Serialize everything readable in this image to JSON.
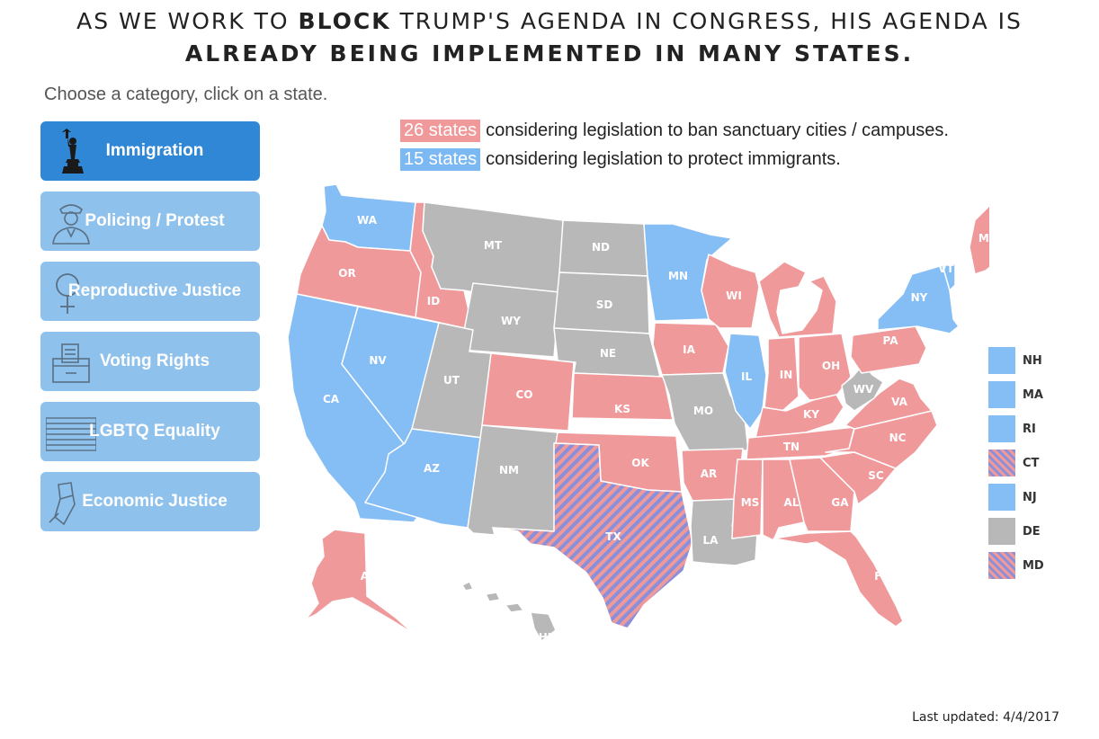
{
  "headline": {
    "line1_pre": "AS WE WORK TO ",
    "line1_bold": "BLOCK",
    "line1_post": " TRUMP'S AGENDA IN CONGRESS, HIS AGENDA IS",
    "line2": "ALREADY BEING IMPLEMENTED IN MANY STATES."
  },
  "instruction": "Choose a category, click on a state.",
  "categories": [
    {
      "label": "Immigration",
      "icon": "statue-of-liberty-icon",
      "active": true
    },
    {
      "label": "Policing / Protest",
      "icon": "police-officer-icon",
      "active": false
    },
    {
      "label": "Reproductive Justice",
      "icon": "female-symbol-icon",
      "active": false
    },
    {
      "label": "Voting Rights",
      "icon": "ballot-box-icon",
      "active": false
    },
    {
      "label": "LGBTQ Equality",
      "icon": "flag-icon",
      "active": false
    },
    {
      "label": "Economic Justice",
      "icon": "raised-fist-icon",
      "active": false
    }
  ],
  "legend": {
    "ban": {
      "count": "26 states",
      "text": "considering legislation to ban sanctuary cities / campuses.",
      "color": "#f0999b"
    },
    "protect": {
      "count": "15 states",
      "text": "considering legislation to protect immigrants.",
      "color": "#7cb9f2"
    }
  },
  "colors": {
    "red": "#f0999b",
    "blue": "#85bdf5",
    "gray": "#b8b8b8",
    "stripe_a": "#f0999b",
    "stripe_b": "#8a8fd9"
  },
  "states": {
    "WA": "blue",
    "OR": "red",
    "CA": "blue",
    "NV": "blue",
    "ID": "red",
    "MT": "gray",
    "WY": "gray",
    "UT": "gray",
    "AZ": "blue",
    "NM": "gray",
    "CO": "red",
    "ND": "gray",
    "SD": "gray",
    "NE": "gray",
    "KS": "red",
    "OK": "red",
    "TX": "stripe",
    "MN": "blue",
    "IA": "red",
    "MO": "gray",
    "AR": "red",
    "LA": "gray",
    "WI": "red",
    "IL": "blue",
    "MI": "red",
    "IN": "red",
    "OH": "red",
    "KY": "red",
    "TN": "red",
    "MS": "red",
    "AL": "red",
    "GA": "red",
    "FL": "red",
    "SC": "red",
    "NC": "red",
    "VA": "red",
    "WV": "gray",
    "PA": "red",
    "NY": "blue",
    "VT": "blue",
    "ME": "red",
    "AK": "red",
    "HI": "gray"
  },
  "side_legend": [
    {
      "abbr": "NH",
      "status": "blue"
    },
    {
      "abbr": "MA",
      "status": "blue"
    },
    {
      "abbr": "RI",
      "status": "blue"
    },
    {
      "abbr": "CT",
      "status": "stripe"
    },
    {
      "abbr": "NJ",
      "status": "blue"
    },
    {
      "abbr": "DE",
      "status": "gray"
    },
    {
      "abbr": "MD",
      "status": "stripe"
    }
  ],
  "last_updated": "Last updated: 4/4/2017"
}
